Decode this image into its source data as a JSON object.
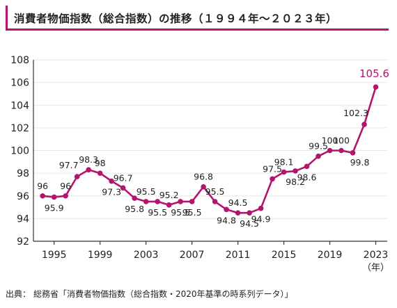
{
  "title": "消費者物価指数（総合指数）の推移（１９９４年～２０２３年）",
  "source": {
    "label": "出典：",
    "text": "総務省「消費者物価指数（総合指数・2020年基準の時系列データ）」"
  },
  "colors": {
    "accent": "#b3146c",
    "axis": "#333333",
    "grid": "#e6e6e6"
  },
  "chart_data": {
    "type": "line",
    "title": "消費者物価指数（総合指数）の推移（１９９４年～２０２３年）",
    "xlabel": "（年）",
    "ylabel": "",
    "ylim": [
      92,
      108
    ],
    "yticks": [
      92,
      94,
      96,
      98,
      100,
      102,
      104,
      106,
      108
    ],
    "xticks": [
      1995,
      1999,
      2003,
      2007,
      2011,
      2015,
      2019,
      2023
    ],
    "xrange": [
      1993.2,
      2024
    ],
    "grid": true,
    "series": [
      {
        "x": [
          1994,
          1995,
          1996,
          1997,
          1998,
          1999,
          2000,
          2001,
          2002,
          2003,
          2004,
          2005,
          2006,
          2007,
          2008,
          2009,
          2010,
          2011,
          2012,
          2013,
          2014,
          2015,
          2016,
          2017,
          2018,
          2019,
          2020,
          2021,
          2022,
          2023
        ],
        "values": [
          96,
          95.9,
          96,
          97.7,
          98.3,
          98,
          97.3,
          96.7,
          95.8,
          95.5,
          95.5,
          95.2,
          95.5,
          95.5,
          96.8,
          95.5,
          94.8,
          94.5,
          94.5,
          94.9,
          97.5,
          98.1,
          98.2,
          98.6,
          99.5,
          100,
          100,
          99.8,
          102.3,
          105.6
        ],
        "labels": [
          "96",
          "95.9",
          "96",
          "97.7",
          "98.3",
          "98",
          "97.3",
          "96.7",
          "95.8",
          "95.5",
          "95.5",
          "95.2",
          "95.5",
          "95.5",
          "96.8",
          "95.5",
          "94.8",
          "94.5",
          "94.5",
          "94.9",
          "97.5",
          "98.1",
          "98.2",
          "98.6",
          "99.5",
          "100",
          "100",
          "99.8",
          "102.3",
          "105.6"
        ]
      }
    ]
  }
}
